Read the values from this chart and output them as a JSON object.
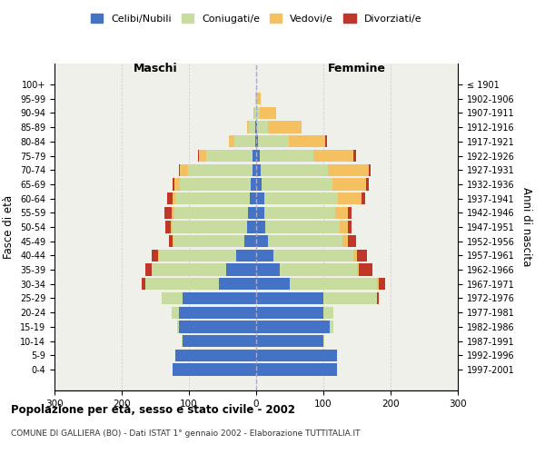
{
  "age_groups": [
    "0-4",
    "5-9",
    "10-14",
    "15-19",
    "20-24",
    "25-29",
    "30-34",
    "35-39",
    "40-44",
    "45-49",
    "50-54",
    "55-59",
    "60-64",
    "65-69",
    "70-74",
    "75-79",
    "80-84",
    "85-89",
    "90-94",
    "95-99",
    "100+"
  ],
  "birth_years": [
    "1997-2001",
    "1992-1996",
    "1987-1991",
    "1982-1986",
    "1977-1981",
    "1972-1976",
    "1967-1971",
    "1962-1966",
    "1957-1961",
    "1952-1956",
    "1947-1951",
    "1942-1946",
    "1937-1941",
    "1932-1936",
    "1927-1931",
    "1922-1926",
    "1917-1921",
    "1912-1916",
    "1907-1911",
    "1902-1906",
    "≤ 1901"
  ],
  "male": {
    "celibi": [
      125,
      120,
      110,
      115,
      115,
      110,
      55,
      45,
      30,
      18,
      14,
      12,
      10,
      8,
      6,
      5,
      2,
      1,
      0,
      0,
      0
    ],
    "coniugati": [
      0,
      0,
      1,
      3,
      10,
      30,
      110,
      110,
      115,
      105,
      110,
      110,
      110,
      105,
      95,
      70,
      30,
      10,
      3,
      1,
      0
    ],
    "vedovi": [
      0,
      0,
      0,
      0,
      0,
      0,
      0,
      0,
      1,
      2,
      3,
      4,
      5,
      8,
      12,
      10,
      8,
      3,
      1,
      0,
      0
    ],
    "divorziati": [
      0,
      0,
      0,
      0,
      0,
      0,
      5,
      10,
      10,
      5,
      8,
      10,
      8,
      3,
      2,
      1,
      0,
      0,
      0,
      0,
      0
    ]
  },
  "female": {
    "nubili": [
      120,
      120,
      100,
      110,
      100,
      100,
      50,
      35,
      25,
      18,
      14,
      12,
      12,
      8,
      7,
      5,
      3,
      2,
      0,
      0,
      0
    ],
    "coniugate": [
      0,
      0,
      2,
      5,
      15,
      80,
      130,
      115,
      120,
      110,
      110,
      105,
      110,
      105,
      100,
      80,
      45,
      15,
      5,
      2,
      0
    ],
    "vedove": [
      0,
      0,
      0,
      0,
      0,
      0,
      2,
      3,
      5,
      8,
      12,
      20,
      35,
      50,
      60,
      60,
      55,
      50,
      25,
      5,
      0
    ],
    "divorziate": [
      0,
      0,
      0,
      0,
      0,
      3,
      10,
      20,
      15,
      12,
      6,
      5,
      5,
      4,
      3,
      3,
      2,
      0,
      0,
      0,
      0
    ]
  },
  "colors": {
    "celibi": "#4472c4",
    "coniugati": "#c8dca0",
    "vedovi": "#f5c060",
    "divorziati": "#c0372a"
  },
  "title": "Popolazione per età, sesso e stato civile - 2002",
  "subtitle": "COMUNE DI GALLIERA (BO) - Dati ISTAT 1° gennaio 2002 - Elaborazione TUTTITALIA.IT",
  "ylabel": "Fasce di età",
  "ylabel_right": "Anni di nascita",
  "xlabel_left": "Maschi",
  "xlabel_right": "Femmine",
  "xlim": 300,
  "bg_color": "#f0f0eb",
  "grid_color": "#cccccc"
}
